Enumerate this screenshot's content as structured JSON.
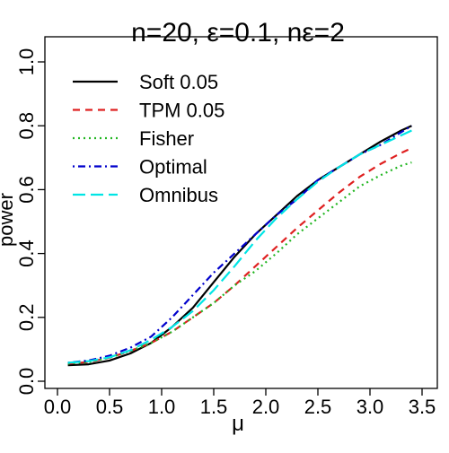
{
  "chart_data": {
    "type": "line",
    "title": "n=20, ε=0.1, nε=2",
    "xlabel": "μ",
    "ylabel": "power",
    "xlim": [
      0.1,
      3.4
    ],
    "ylim": [
      0.0,
      1.0
    ],
    "x_ticks": [
      "0.0",
      "0.5",
      "1.0",
      "1.5",
      "2.0",
      "2.5",
      "3.0",
      "3.5"
    ],
    "y_ticks": [
      "0.0",
      "0.2",
      "0.4",
      "0.6",
      "0.8",
      "1.0"
    ],
    "grid": false,
    "legend_position": "top-left",
    "x": [
      0.1,
      0.3,
      0.5,
      0.7,
      0.9,
      1.1,
      1.3,
      1.5,
      1.7,
      1.9,
      2.1,
      2.3,
      2.5,
      2.7,
      2.9,
      3.1,
      3.3,
      3.4
    ],
    "series": [
      {
        "name": "Soft 0.05",
        "color": "#000000",
        "dash": "solid",
        "values": [
          0.05,
          0.053,
          0.065,
          0.087,
          0.12,
          0.17,
          0.23,
          0.31,
          0.39,
          0.46,
          0.52,
          0.58,
          0.63,
          0.67,
          0.71,
          0.75,
          0.785,
          0.8
        ]
      },
      {
        "name": "TPM 0.05",
        "color": "#df2020",
        "dash": "dashed",
        "values": [
          0.055,
          0.06,
          0.074,
          0.095,
          0.12,
          0.155,
          0.2,
          0.245,
          0.3,
          0.36,
          0.42,
          0.48,
          0.535,
          0.59,
          0.64,
          0.68,
          0.715,
          0.73
        ]
      },
      {
        "name": "Fisher",
        "color": "#22b622",
        "dash": "dotted",
        "values": [
          0.055,
          0.06,
          0.074,
          0.095,
          0.12,
          0.155,
          0.2,
          0.245,
          0.3,
          0.345,
          0.4,
          0.46,
          0.51,
          0.56,
          0.61,
          0.645,
          0.675,
          0.685
        ]
      },
      {
        "name": "Optimal",
        "color": "#0000cc",
        "dash": "dotdash",
        "values": [
          0.058,
          0.065,
          0.08,
          0.105,
          0.14,
          0.2,
          0.27,
          0.34,
          0.4,
          0.46,
          0.52,
          0.57,
          0.63,
          0.67,
          0.71,
          0.74,
          0.78,
          0.8
        ]
      },
      {
        "name": "Omnibus",
        "color": "#00e5e5",
        "dash": "longdash",
        "values": [
          0.058,
          0.063,
          0.075,
          0.097,
          0.13,
          0.17,
          0.22,
          0.285,
          0.36,
          0.44,
          0.51,
          0.57,
          0.625,
          0.67,
          0.71,
          0.74,
          0.77,
          0.785
        ]
      }
    ]
  }
}
